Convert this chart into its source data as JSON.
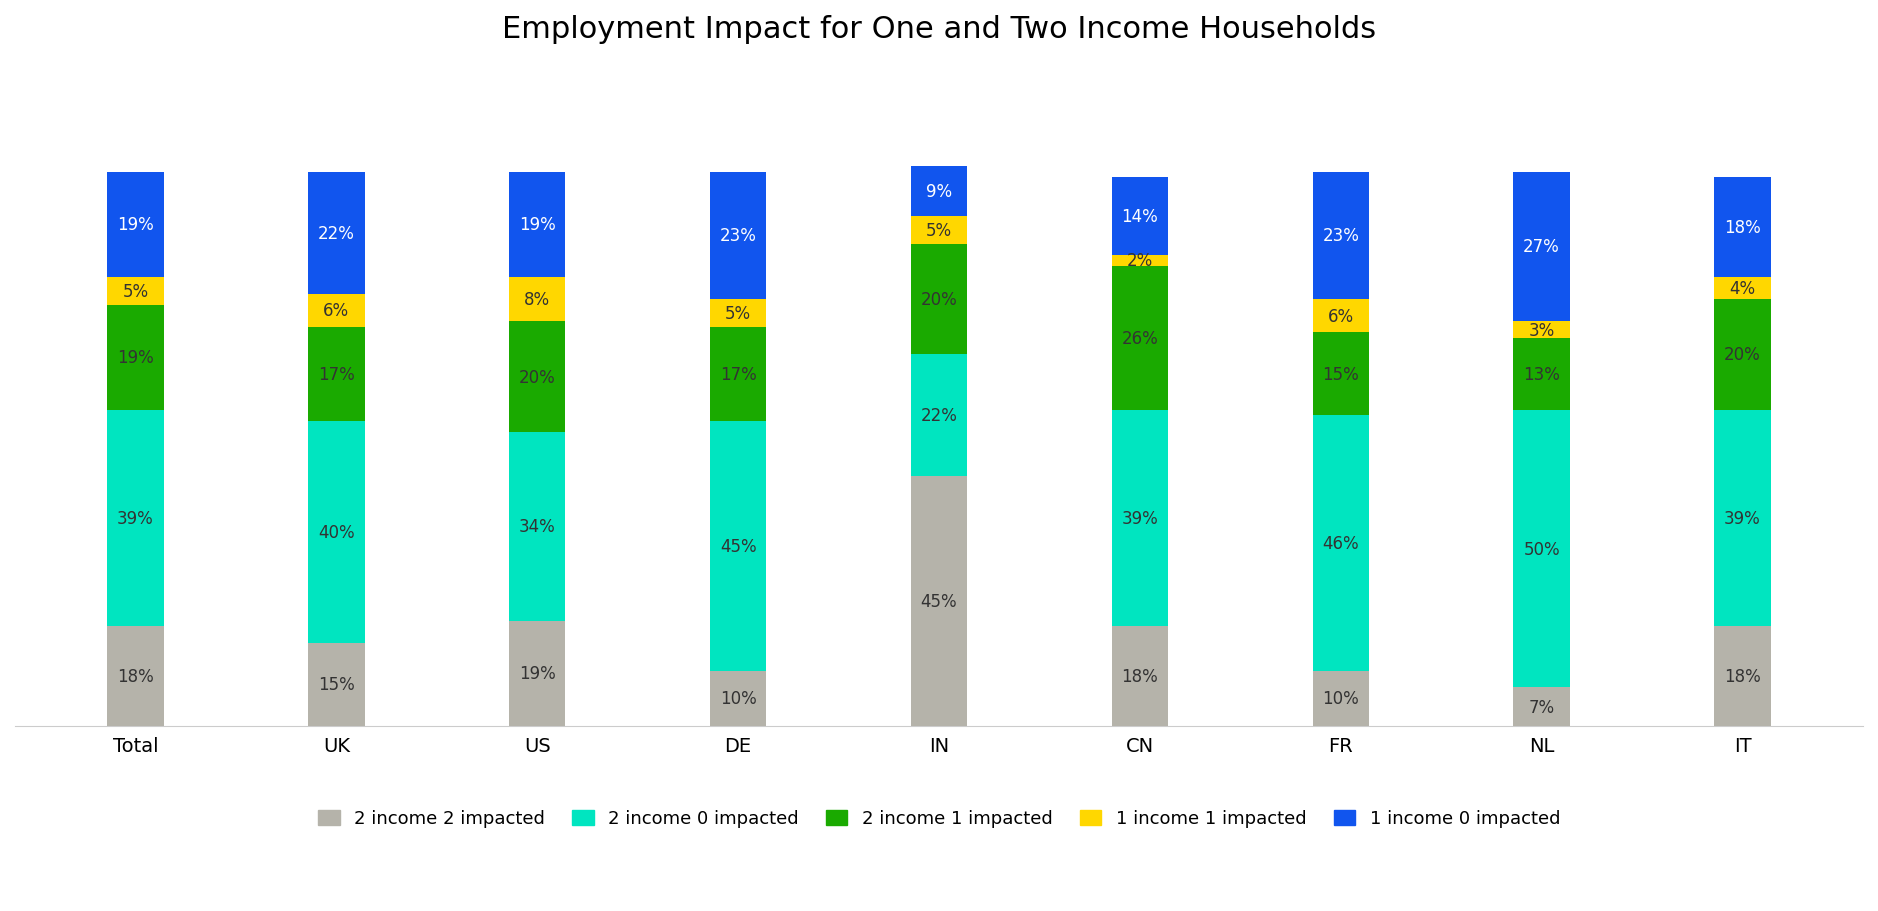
{
  "title": "Employment Impact for One and Two Income Households",
  "categories": [
    "Total",
    "UK",
    "US",
    "DE",
    "IN",
    "CN",
    "FR",
    "NL",
    "IT"
  ],
  "series": {
    "2 income 2 impacted": [
      18,
      15,
      19,
      10,
      45,
      18,
      10,
      7,
      18
    ],
    "2 income 0 impacted": [
      39,
      40,
      34,
      45,
      22,
      39,
      46,
      50,
      39
    ],
    "2 income 1 impacted": [
      19,
      17,
      20,
      17,
      20,
      26,
      15,
      13,
      20
    ],
    "1 income 1 impacted": [
      5,
      6,
      8,
      5,
      5,
      2,
      6,
      3,
      4
    ],
    "1 income 0 impacted": [
      19,
      22,
      19,
      23,
      9,
      14,
      23,
      27,
      18
    ]
  },
  "colors": {
    "2 income 2 impacted": "#b5b3aa",
    "2 income 0 impacted": "#00e5c0",
    "2 income 1 impacted": "#1aaa00",
    "1 income 1 impacted": "#ffd700",
    "1 income 0 impacted": "#1155ee"
  },
  "label_text_colors": {
    "2 income 2 impacted": "#333333",
    "2 income 0 impacted": "#333333",
    "2 income 1 impacted": "#333333",
    "1 income 1 impacted": "#333333",
    "1 income 0 impacted": "#ffffff"
  },
  "bar_width": 0.28,
  "figsize": [
    18.78,
    9.12
  ],
  "dpi": 100,
  "background_color": "#ffffff",
  "title_fontsize": 22,
  "tick_fontsize": 14,
  "legend_fontsize": 13,
  "label_fontsize": 12
}
